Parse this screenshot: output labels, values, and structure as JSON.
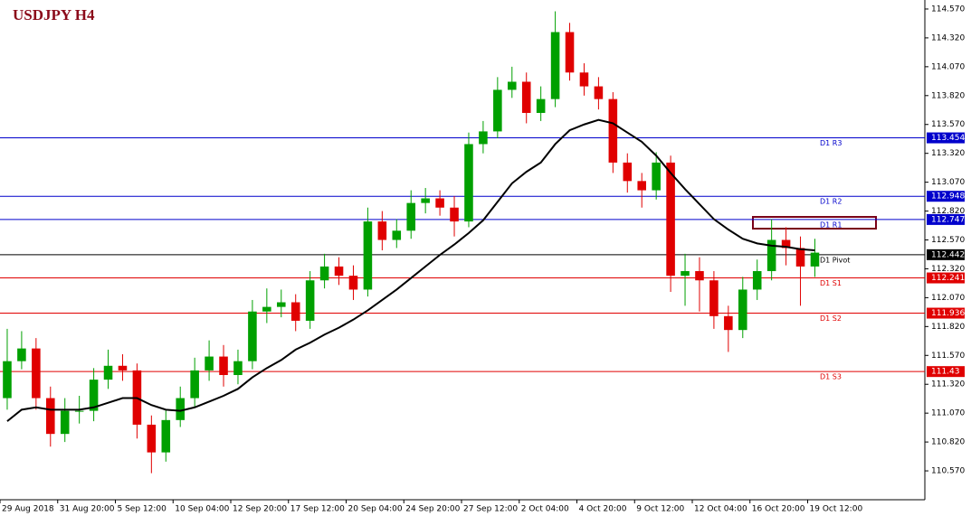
{
  "chart_data": {
    "type": "candlestick",
    "title": "USDJPY H4",
    "up_color": "#00a000",
    "down_color": "#e00000",
    "ylim": [
      110.32,
      114.648
    ],
    "xlim": [
      -0.5,
      63.5
    ],
    "yticks": [
      {
        "value": 114.57,
        "label": "114.570"
      },
      {
        "value": 114.32,
        "label": "114.320"
      },
      {
        "value": 114.07,
        "label": "114.070"
      },
      {
        "value": 113.82,
        "label": "113.820"
      },
      {
        "value": 113.57,
        "label": "113.570"
      },
      {
        "value": 113.32,
        "label": "113.320"
      },
      {
        "value": 113.07,
        "label": "113.070"
      },
      {
        "value": 112.82,
        "label": "112.820"
      },
      {
        "value": 112.57,
        "label": "112.570"
      },
      {
        "value": 112.32,
        "label": "112.320"
      },
      {
        "value": 112.07,
        "label": "112.070"
      },
      {
        "value": 111.82,
        "label": "111.820"
      },
      {
        "value": 111.57,
        "label": "111.570"
      },
      {
        "value": 111.32,
        "label": "111.320"
      },
      {
        "value": 111.07,
        "label": "111.070"
      },
      {
        "value": 110.82,
        "label": "110.820"
      },
      {
        "value": 110.57,
        "label": "110.570"
      }
    ],
    "xticks": [
      {
        "value": 0,
        "label": "29 Aug 2018"
      },
      {
        "value": 4,
        "label": "31 Aug 20:00"
      },
      {
        "value": 8,
        "label": "5 Sep 12:00"
      },
      {
        "value": 12,
        "label": "10 Sep 04:00"
      },
      {
        "value": 16,
        "label": "12 Sep 20:00"
      },
      {
        "value": 20,
        "label": "17 Sep 12:00"
      },
      {
        "value": 24,
        "label": "20 Sep 04:00"
      },
      {
        "value": 28,
        "label": "24 Sep 20:00"
      },
      {
        "value": 32,
        "label": "27 Sep 12:00"
      },
      {
        "value": 36,
        "label": "2 Oct 04:00"
      },
      {
        "value": 40,
        "label": "4 Oct 20:00"
      },
      {
        "value": 44,
        "label": "9 Oct 12:00"
      },
      {
        "value": 48,
        "label": "12 Oct 04:00"
      },
      {
        "value": 52,
        "label": "16 Oct 20:00"
      },
      {
        "value": 56,
        "label": "19 Oct 12:00"
      }
    ],
    "open": [
      111.2,
      111.52,
      111.63,
      111.2,
      110.89,
      111.09,
      111.09,
      111.36,
      111.48,
      111.44,
      110.97,
      110.73,
      111.01,
      111.2,
      111.44,
      111.56,
      111.4,
      111.52,
      111.95,
      111.99,
      112.03,
      111.87,
      112.22,
      112.34,
      112.26,
      112.14,
      112.73,
      112.57,
      112.65,
      112.89,
      112.93,
      112.85,
      112.73,
      113.4,
      113.51,
      113.87,
      113.94,
      113.67,
      113.79,
      114.37,
      114.02,
      113.9,
      113.79,
      113.24,
      113.08,
      113.0,
      113.24,
      112.26,
      112.3,
      112.22,
      111.91,
      111.79,
      112.14,
      112.3,
      112.57,
      112.5,
      112.34
    ],
    "high": [
      111.8,
      111.78,
      111.72,
      111.3,
      111.2,
      111.22,
      111.46,
      111.62,
      111.58,
      111.5,
      111.05,
      111.1,
      111.3,
      111.55,
      111.7,
      111.66,
      111.62,
      112.05,
      112.15,
      112.14,
      112.1,
      112.3,
      112.45,
      112.42,
      112.35,
      112.85,
      112.82,
      112.75,
      113.0,
      113.02,
      113.0,
      112.95,
      113.5,
      113.6,
      113.98,
      114.07,
      114.02,
      113.9,
      114.55,
      114.45,
      114.1,
      113.98,
      113.85,
      113.32,
      113.15,
      113.33,
      113.3,
      112.45,
      112.42,
      112.3,
      112.0,
      112.25,
      112.4,
      112.75,
      112.68,
      112.6,
      112.58
    ],
    "low": [
      111.1,
      111.45,
      111.1,
      110.78,
      110.82,
      110.98,
      111.0,
      111.28,
      111.35,
      110.85,
      110.55,
      110.65,
      110.95,
      111.12,
      111.35,
      111.3,
      111.32,
      111.45,
      111.85,
      111.9,
      111.78,
      111.8,
      112.15,
      112.18,
      112.05,
      112.08,
      112.48,
      112.5,
      112.58,
      112.8,
      112.78,
      112.6,
      112.68,
      113.32,
      113.45,
      113.8,
      113.58,
      113.6,
      113.72,
      113.95,
      113.82,
      113.7,
      113.15,
      112.98,
      112.85,
      112.92,
      112.12,
      112.0,
      111.95,
      111.8,
      111.6,
      111.72,
      112.05,
      112.22,
      112.35,
      112.0,
      112.25
    ],
    "close": [
      111.52,
      111.63,
      111.2,
      110.89,
      111.09,
      111.09,
      111.36,
      111.48,
      111.44,
      110.97,
      110.73,
      111.01,
      111.2,
      111.44,
      111.56,
      111.4,
      111.52,
      111.95,
      111.99,
      112.03,
      111.87,
      112.22,
      112.34,
      112.26,
      112.14,
      112.73,
      112.57,
      112.65,
      112.89,
      112.93,
      112.85,
      112.73,
      113.4,
      113.51,
      113.87,
      113.94,
      113.67,
      113.79,
      114.37,
      114.02,
      113.9,
      113.79,
      113.24,
      113.08,
      113.0,
      113.24,
      112.26,
      112.3,
      112.22,
      111.91,
      111.79,
      112.14,
      112.3,
      112.57,
      112.5,
      112.34,
      112.46
    ],
    "ma": {
      "color": "#000000",
      "values": [
        111.0,
        111.1,
        111.12,
        111.1,
        111.1,
        111.1,
        111.12,
        111.16,
        111.2,
        111.2,
        111.14,
        111.1,
        111.09,
        111.12,
        111.17,
        111.22,
        111.28,
        111.38,
        111.46,
        111.53,
        111.62,
        111.68,
        111.75,
        111.81,
        111.88,
        111.96,
        112.05,
        112.14,
        112.24,
        112.34,
        112.44,
        112.53,
        112.63,
        112.74,
        112.9,
        113.06,
        113.16,
        113.24,
        113.4,
        113.52,
        113.57,
        113.61,
        113.58,
        113.5,
        113.42,
        113.3,
        113.15,
        113.01,
        112.88,
        112.75,
        112.66,
        112.58,
        112.54,
        112.52,
        112.51,
        112.49,
        112.48
      ]
    },
    "levels": [
      {
        "name": "D1 R3",
        "value": 113.454,
        "color": "#0000cc"
      },
      {
        "name": "D1 R2",
        "value": 112.948,
        "color": "#0000cc"
      },
      {
        "name": "D1 R1",
        "value": 112.747,
        "color": "#0000cc"
      },
      {
        "name": "D1 Pivot",
        "value": 112.442,
        "color": "#000000"
      },
      {
        "name": "D1 S1",
        "value": 112.241,
        "color": "#e00000"
      },
      {
        "name": "D1 S2",
        "value": 111.936,
        "color": "#e00000"
      },
      {
        "name": "D1 S3",
        "value": 111.43,
        "color": "#e00000"
      }
    ]
  }
}
